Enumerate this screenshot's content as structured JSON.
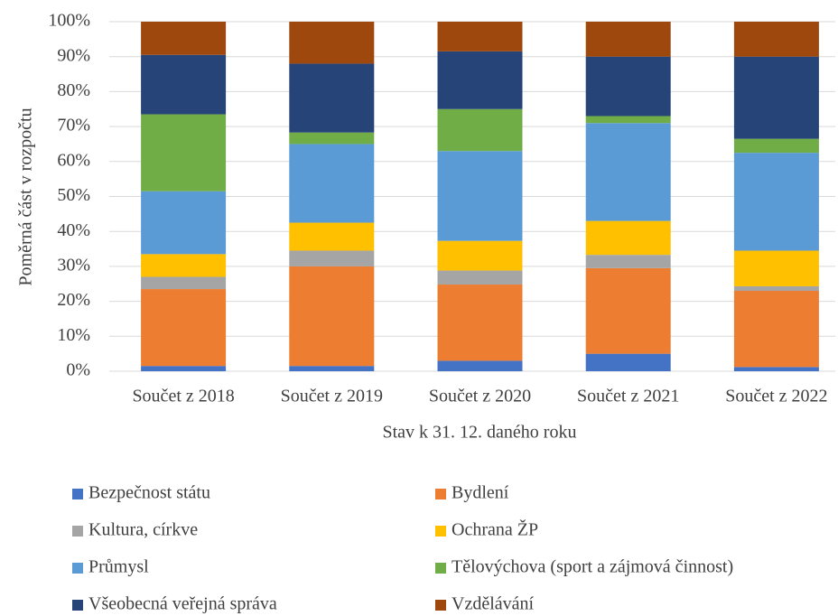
{
  "chart_data": {
    "type": "stacked_bar_100",
    "ylabel": "Poměrná část v rozpočtu",
    "xlabel": "Stav k 31. 12. daného roku",
    "categories": [
      "Součet z 2018",
      "Součet z 2019",
      "Součet z 2020",
      "Součet z 2021",
      "Součet z 2022"
    ],
    "series": [
      {
        "name": "Bezpečnost státu",
        "color": "#4472c4",
        "values": [
          1.5,
          1.5,
          3,
          5,
          1.2
        ]
      },
      {
        "name": "Bydlení",
        "color": "#ed7d31",
        "values": [
          22,
          28.5,
          21.8,
          24.5,
          21.8
        ]
      },
      {
        "name": "Kultura, církve",
        "color": "#a5a5a5",
        "values": [
          3.5,
          4.5,
          4,
          3.8,
          1.3
        ]
      },
      {
        "name": "Ochrana ŽP",
        "color": "#ffc000",
        "values": [
          6.5,
          8,
          8.5,
          9.7,
          10.2
        ]
      },
      {
        "name": "Průmysl",
        "color": "#5b9bd5",
        "values": [
          18,
          22.5,
          25.7,
          28,
          28
        ]
      },
      {
        "name": "Tělovýchova (sport a zájmová činnost)",
        "color": "#70ad47",
        "values": [
          22,
          3.3,
          12,
          2,
          4
        ]
      },
      {
        "name": "Všeobecná veřejná správa",
        "color": "#264478",
        "values": [
          17,
          19.7,
          16.5,
          17,
          23.5
        ]
      },
      {
        "name": "Vzdělávání",
        "color": "#9e480e",
        "values": [
          9.5,
          12,
          8.5,
          10,
          10
        ]
      }
    ],
    "ylim": [
      0,
      100
    ],
    "yticks": [
      {
        "value": 0,
        "label": "0%"
      },
      {
        "value": 10,
        "label": "10%"
      },
      {
        "value": 20,
        "label": "20%"
      },
      {
        "value": 30,
        "label": "30%"
      },
      {
        "value": 40,
        "label": "40%"
      },
      {
        "value": 50,
        "label": "50%"
      },
      {
        "value": 60,
        "label": "60%"
      },
      {
        "value": 70,
        "label": "70%"
      },
      {
        "value": 80,
        "label": "80%"
      },
      {
        "value": 90,
        "label": "90%"
      },
      {
        "value": 100,
        "label": "100%"
      }
    ],
    "grid": true
  }
}
